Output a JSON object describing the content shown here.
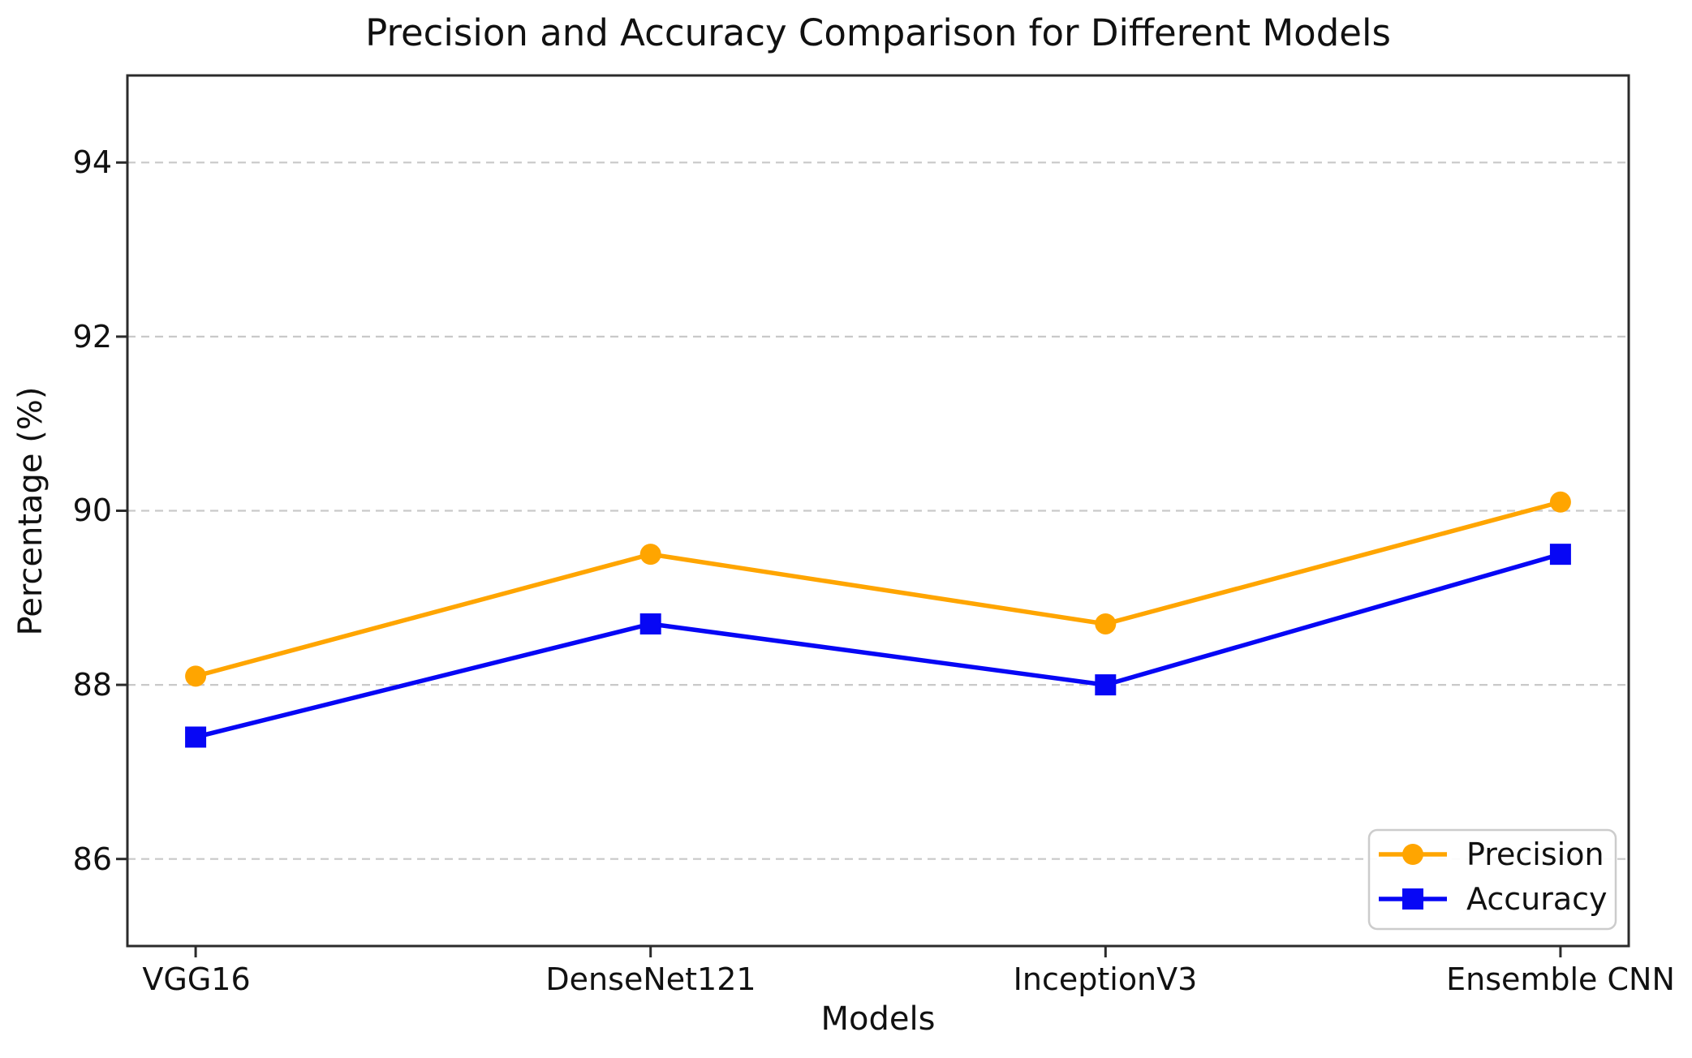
{
  "figure": {
    "background_color": "#ffffff",
    "text_color": "#111111",
    "frame_color": "#2b2b2b",
    "grid_color": "#c9c9c9",
    "legend_border_color": "#cccccc"
  },
  "chart_data": {
    "type": "line",
    "title": "Precision and Accuracy Comparison for Different Models",
    "xlabel": "Models",
    "ylabel": "Percentage (%)",
    "categories": [
      "VGG16",
      "DenseNet121",
      "InceptionV3",
      "Ensemble CNN"
    ],
    "series": [
      {
        "name": "Precision",
        "color": "#FFA500",
        "marker": "circle",
        "values": [
          88.1,
          89.5,
          88.7,
          90.1
        ]
      },
      {
        "name": "Accuracy",
        "color": "#0707F5",
        "marker": "square",
        "values": [
          87.4,
          88.7,
          88.0,
          89.5
        ]
      }
    ],
    "ylim": [
      85,
      95
    ],
    "yticks": [
      94,
      92,
      90,
      88,
      86
    ],
    "grid": "horizontal-dashed",
    "legend_position": "lower right"
  }
}
